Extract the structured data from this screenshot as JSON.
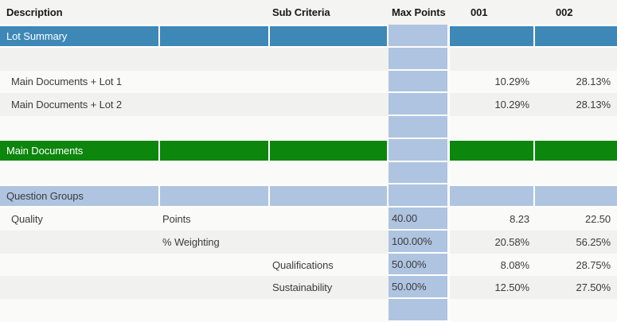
{
  "header": {
    "description": "Description",
    "sub_criteria": "Sub Criteria",
    "max_points": "Max Points",
    "col_001": "001",
    "col_002": "002"
  },
  "colors": {
    "band_blue": "#3E88B8",
    "band_green": "#0C860C",
    "light_blue": "#AFC4E0"
  },
  "rows": {
    "lot_summary": {
      "label": "Lot Summary"
    },
    "lot1": {
      "description": "Main Documents + Lot 1",
      "v001": "10.29%",
      "v002": "28.13%"
    },
    "lot2": {
      "description": "Main Documents + Lot 2",
      "v001": "10.29%",
      "v002": "28.13%"
    },
    "main_documents": {
      "label": "Main Documents"
    },
    "question_groups": {
      "label": "Question Groups"
    },
    "quality_points": {
      "description": "Quality",
      "criteria": "Points",
      "max_points": "40.00",
      "v001": "8.23",
      "v002": "22.50"
    },
    "quality_weighting": {
      "criteria": "% Weighting",
      "max_points": "100.00%",
      "v001": "20.58%",
      "v002": "56.25%"
    },
    "qualifications": {
      "sub_criteria": "Qualifications",
      "max_points": "50.00%",
      "v001": "8.08%",
      "v002": "28.75%"
    },
    "sustainability": {
      "sub_criteria": "Sustainability",
      "max_points": "50.00%",
      "v001": "12.50%",
      "v002": "27.50%"
    }
  }
}
